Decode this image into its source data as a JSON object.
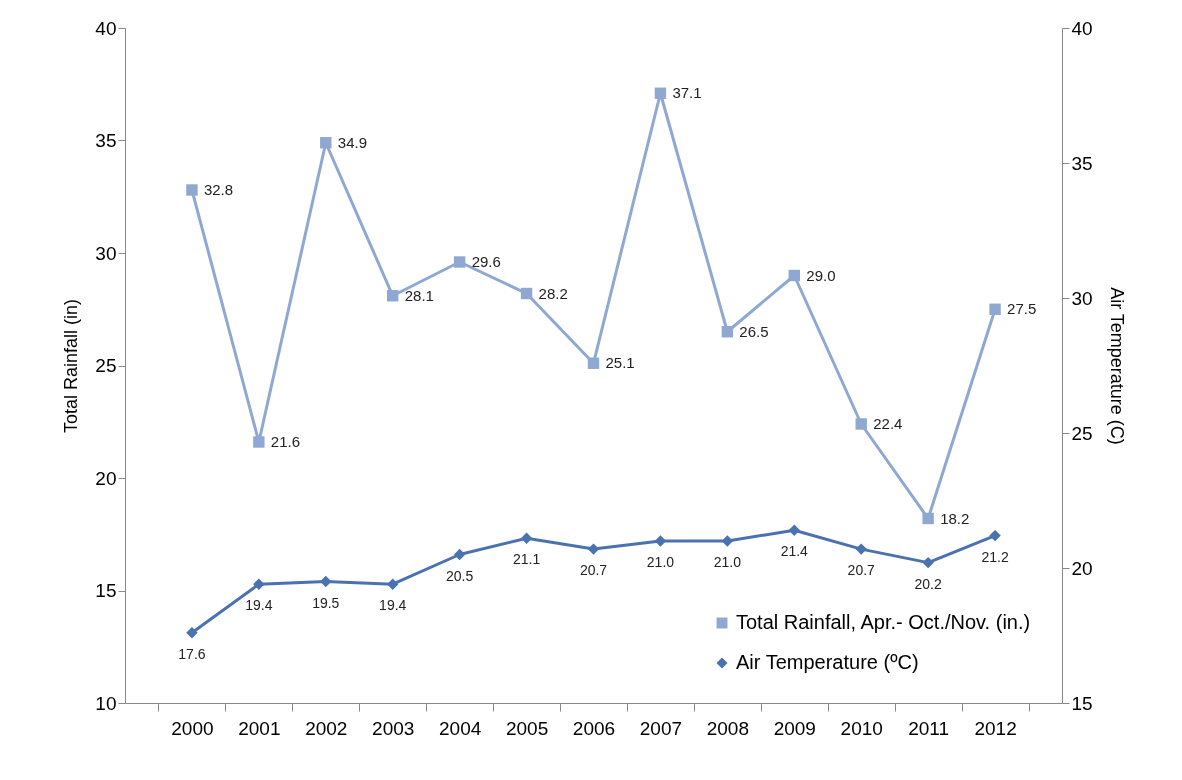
{
  "chart_data": {
    "type": "line",
    "ylabel": "Total Rainfall (in)",
    "y2label": "Air Temperature (C)",
    "categories": [
      "2000",
      "2001",
      "2002",
      "2003",
      "2004",
      "2005",
      "2006",
      "2007",
      "2008",
      "2009",
      "2010",
      "2011",
      "2012"
    ],
    "series": [
      {
        "name": "Total Rainfall, Apr.- Oct./Nov. (in.)",
        "color": "#8fa8d2",
        "marker": "square",
        "values": [
          32.8,
          21.6,
          34.9,
          28.1,
          29.6,
          28.2,
          25.1,
          37.1,
          26.5,
          29.0,
          22.4,
          18.2,
          27.5
        ],
        "value_labels": [
          "32.8",
          "21.6",
          "34.9",
          "28.1",
          "29.6",
          "28.2",
          "25.1",
          "37.1",
          "26.5",
          "29.0",
          "22.4",
          "18.2",
          "27.5"
        ]
      },
      {
        "name": "Air Temperature (ºC)",
        "color": "#4a72b0",
        "marker": "diamond",
        "axis": "y2",
        "values": [
          17.6,
          19.4,
          19.5,
          19.4,
          20.5,
          21.1,
          20.7,
          21.0,
          21.0,
          21.4,
          20.7,
          20.2,
          21.2
        ],
        "value_labels": [
          "17.6",
          "19.4",
          "19.5",
          "19.4",
          "20.5",
          "21.1",
          "20.7",
          "21.0",
          "21.0",
          "21.4",
          "20.7",
          "20.2",
          "21.2"
        ]
      }
    ],
    "ylim": [
      10,
      40
    ],
    "yticks": [
      10,
      15,
      20,
      25,
      30,
      35,
      40
    ],
    "y2lim": [
      15,
      40
    ],
    "y2ticks": [
      15,
      20,
      25,
      30,
      35,
      40
    ],
    "legend": "bottom right",
    "grid": false
  }
}
